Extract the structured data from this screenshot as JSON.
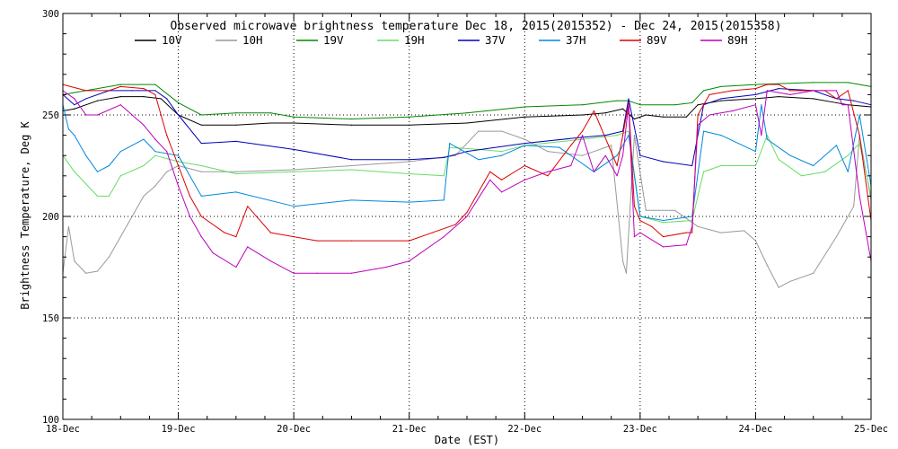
{
  "chart_data": {
    "type": "line",
    "title": "Observed microwave brightness temperature Dec 18, 2015(2015352) - Dec 24, 2015(2015358)",
    "xlabel": "Date (EST)",
    "ylabel": "Brightness Temperature, Deg K",
    "xlim": [
      0,
      7
    ],
    "ylim": [
      100,
      300
    ],
    "x_ticks": [
      0,
      1,
      2,
      3,
      4,
      5,
      6,
      7
    ],
    "x_tick_labels": [
      "18-Dec",
      "19-Dec",
      "20-Dec",
      "21-Dec",
      "22-Dec",
      "23-Dec",
      "24-Dec",
      "25-Dec"
    ],
    "y_ticks": [
      100,
      150,
      200,
      250,
      300
    ],
    "y_tick_labels": [
      "100",
      "150",
      "200",
      "250",
      "300"
    ],
    "grid": "dotted",
    "legend_position": "top",
    "series": [
      {
        "name": "10V",
        "color": "#000000",
        "x": [
          0,
          0.1,
          0.3,
          0.5,
          0.7,
          0.85,
          1.0,
          1.2,
          1.5,
          1.8,
          2.0,
          2.5,
          3.0,
          3.5,
          4.0,
          4.5,
          4.7,
          4.85,
          4.95,
          5.05,
          5.2,
          5.4,
          5.5,
          5.7,
          6.0,
          6.2,
          6.5,
          6.7,
          6.8,
          7.0
        ],
        "values": [
          252,
          253,
          257,
          259,
          259,
          258,
          250,
          245,
          245,
          246,
          246,
          245,
          245,
          246,
          249,
          250,
          251,
          253,
          248,
          250,
          249,
          249,
          255,
          257,
          258,
          259,
          258,
          256,
          255,
          254
        ]
      },
      {
        "name": "10H",
        "color": "#999999",
        "x": [
          0,
          0.05,
          0.1,
          0.2,
          0.3,
          0.4,
          0.5,
          0.6,
          0.7,
          0.8,
          0.9,
          1.0,
          1.2,
          1.5,
          2.0,
          2.5,
          3.0,
          3.4,
          3.6,
          3.8,
          4.0,
          4.2,
          4.5,
          4.75,
          4.85,
          4.88,
          4.95,
          5.05,
          5.3,
          5.5,
          5.7,
          5.9,
          6.0,
          6.1,
          6.2,
          6.3,
          6.5,
          6.7,
          6.85,
          6.9,
          7.0
        ],
        "values": [
          172,
          195,
          178,
          172,
          173,
          180,
          190,
          200,
          210,
          215,
          222,
          225,
          222,
          222,
          223,
          225,
          227,
          230,
          242,
          242,
          238,
          232,
          230,
          235,
          178,
          172,
          240,
          203,
          203,
          195,
          192,
          193,
          188,
          176,
          165,
          168,
          172,
          190,
          205,
          240,
          208
        ]
      },
      {
        "name": "19V",
        "color": "#008800",
        "x": [
          0,
          0.2,
          0.5,
          0.8,
          1.0,
          1.2,
          1.5,
          1.8,
          2.0,
          2.5,
          3.0,
          3.5,
          4.0,
          4.5,
          4.8,
          4.9,
          5.0,
          5.3,
          5.45,
          5.55,
          5.7,
          6.0,
          6.5,
          6.8,
          7.0
        ],
        "values": [
          260,
          262,
          265,
          265,
          256,
          250,
          251,
          251,
          249,
          248,
          249,
          251,
          254,
          255,
          257,
          257,
          255,
          255,
          256,
          262,
          264,
          265,
          266,
          266,
          264
        ]
      },
      {
        "name": "19H",
        "color": "#66dd66",
        "x": [
          0,
          0.1,
          0.3,
          0.4,
          0.5,
          0.7,
          0.8,
          1.0,
          1.2,
          1.5,
          2.0,
          2.5,
          3.0,
          3.3,
          3.35,
          3.6,
          3.8,
          4.0,
          4.5,
          4.8,
          4.9,
          5.0,
          5.2,
          5.45,
          5.55,
          5.7,
          6.0,
          6.1,
          6.2,
          6.4,
          6.6,
          6.8,
          6.9,
          7.0
        ],
        "values": [
          230,
          222,
          210,
          210,
          220,
          225,
          230,
          227,
          225,
          221,
          222,
          223,
          221,
          220,
          234,
          233,
          232,
          235,
          238,
          240,
          242,
          200,
          197,
          198,
          222,
          225,
          225,
          240,
          228,
          220,
          222,
          230,
          236,
          210
        ]
      },
      {
        "name": "37V",
        "color": "#0000bb",
        "x": [
          0,
          0.1,
          0.2,
          0.4,
          0.6,
          0.8,
          0.9,
          1.0,
          1.2,
          1.5,
          2.0,
          2.5,
          3.0,
          3.3,
          3.5,
          4.0,
          4.5,
          4.7,
          4.85,
          4.9,
          5.0,
          5.2,
          5.45,
          5.55,
          5.7,
          6.0,
          6.2,
          6.5,
          6.7,
          6.85,
          7.0
        ],
        "values": [
          260,
          255,
          258,
          262,
          262,
          262,
          258,
          250,
          236,
          237,
          233,
          228,
          228,
          229,
          232,
          236,
          239,
          240,
          242,
          258,
          230,
          227,
          225,
          255,
          258,
          260,
          263,
          262,
          258,
          257,
          255
        ]
      },
      {
        "name": "37H",
        "color": "#0088dd",
        "x": [
          0,
          0.05,
          0.1,
          0.2,
          0.3,
          0.4,
          0.5,
          0.6,
          0.7,
          0.8,
          1.0,
          1.2,
          1.5,
          2.0,
          2.5,
          3.0,
          3.3,
          3.35,
          3.6,
          3.8,
          4.0,
          4.3,
          4.6,
          4.8,
          4.9,
          5.0,
          5.2,
          5.45,
          5.55,
          5.7,
          6.0,
          6.05,
          6.1,
          6.3,
          6.5,
          6.7,
          6.8,
          6.9,
          7.0
        ],
        "values": [
          255,
          243,
          240,
          230,
          222,
          225,
          232,
          235,
          238,
          232,
          230,
          210,
          212,
          205,
          208,
          207,
          208,
          236,
          228,
          230,
          235,
          234,
          222,
          230,
          240,
          200,
          198,
          200,
          242,
          240,
          232,
          255,
          238,
          230,
          225,
          235,
          222,
          250,
          215
        ]
      },
      {
        "name": "89V",
        "color": "#dd0000",
        "x": [
          0,
          0.2,
          0.4,
          0.5,
          0.7,
          0.8,
          0.85,
          0.9,
          1.0,
          1.1,
          1.2,
          1.4,
          1.5,
          1.6,
          1.8,
          2.0,
          2.2,
          2.5,
          3.0,
          3.2,
          3.4,
          3.5,
          3.7,
          3.8,
          4.0,
          4.2,
          4.4,
          4.5,
          4.6,
          4.8,
          4.85,
          4.9,
          4.95,
          5.0,
          5.1,
          5.2,
          5.4,
          5.45,
          5.5,
          5.6,
          5.8,
          6.0,
          6.1,
          6.2,
          6.3,
          6.5,
          6.6,
          6.7,
          6.8,
          6.9,
          7.0
        ],
        "values": [
          265,
          262,
          262,
          264,
          263,
          260,
          250,
          240,
          225,
          210,
          200,
          192,
          190,
          205,
          192,
          190,
          188,
          188,
          188,
          192,
          196,
          202,
          222,
          218,
          225,
          220,
          235,
          242,
          252,
          225,
          240,
          256,
          205,
          198,
          195,
          190,
          192,
          192,
          250,
          260,
          262,
          263,
          265,
          265,
          262,
          262,
          262,
          258,
          262,
          240,
          198
        ]
      },
      {
        "name": "89H",
        "color": "#bb00bb",
        "x": [
          0,
          0.1,
          0.2,
          0.3,
          0.5,
          0.7,
          0.8,
          0.9,
          1.0,
          1.1,
          1.2,
          1.3,
          1.5,
          1.6,
          1.8,
          2.0,
          2.2,
          2.5,
          2.8,
          3.0,
          3.3,
          3.5,
          3.7,
          3.8,
          4.0,
          4.2,
          4.4,
          4.5,
          4.6,
          4.7,
          4.8,
          4.85,
          4.9,
          4.95,
          5.0,
          5.2,
          5.4,
          5.45,
          5.5,
          5.6,
          5.8,
          6.0,
          6.05,
          6.1,
          6.3,
          6.5,
          6.6,
          6.7,
          6.75,
          6.8,
          6.9,
          7.0
        ],
        "values": [
          262,
          258,
          250,
          250,
          255,
          245,
          238,
          232,
          215,
          200,
          190,
          182,
          175,
          185,
          178,
          172,
          172,
          172,
          175,
          178,
          190,
          200,
          218,
          212,
          218,
          222,
          225,
          240,
          222,
          230,
          220,
          230,
          255,
          190,
          192,
          185,
          186,
          195,
          245,
          250,
          252,
          255,
          240,
          262,
          260,
          262,
          262,
          262,
          255,
          255,
          210,
          178
        ]
      }
    ]
  }
}
